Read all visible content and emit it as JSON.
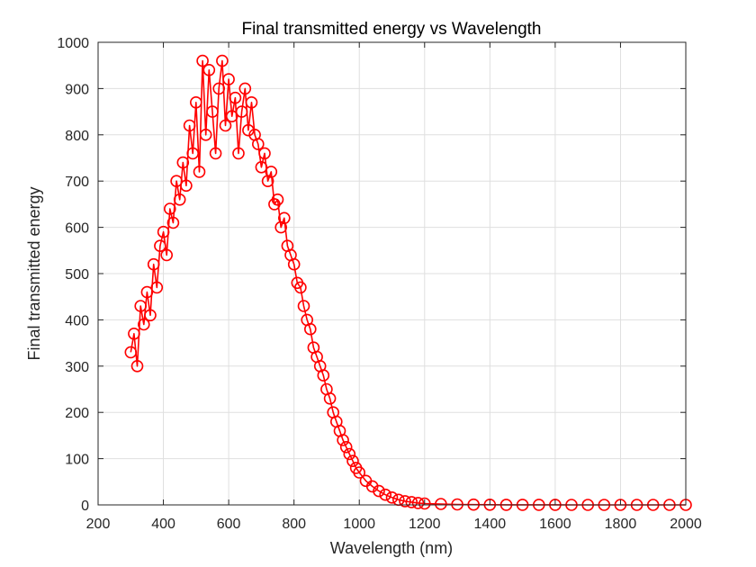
{
  "chart_data": {
    "type": "scatter",
    "title": "Final transmitted energy vs Wavelength",
    "xlabel": "Wavelength (nm)",
    "ylabel": "Final transmitted energy",
    "xlim": [
      200,
      2000
    ],
    "ylim": [
      0,
      1000
    ],
    "xticks": [
      "200",
      "400",
      "600",
      "800",
      "1000",
      "1200",
      "1400",
      "1600",
      "1800",
      "2000"
    ],
    "yticks": [
      "0",
      "100",
      "200",
      "300",
      "400",
      "500",
      "600",
      "700",
      "800",
      "900",
      "1000"
    ],
    "grid": true,
    "marker": "circle",
    "connected": true,
    "series_color": "#ff0000",
    "x": [
      300,
      310,
      320,
      330,
      340,
      350,
      360,
      370,
      380,
      390,
      400,
      410,
      420,
      430,
      440,
      450,
      460,
      470,
      480,
      490,
      500,
      510,
      520,
      530,
      540,
      550,
      560,
      570,
      580,
      590,
      600,
      610,
      620,
      630,
      640,
      650,
      660,
      670,
      680,
      690,
      700,
      710,
      720,
      730,
      740,
      750,
      760,
      770,
      780,
      790,
      800,
      810,
      820,
      830,
      840,
      850,
      860,
      870,
      880,
      890,
      900,
      910,
      920,
      930,
      940,
      950,
      960,
      970,
      980,
      990,
      1000,
      1020,
      1040,
      1060,
      1080,
      1100,
      1120,
      1140,
      1160,
      1180,
      1200,
      1250,
      1300,
      1350,
      1400,
      1450,
      1500,
      1550,
      1600,
      1650,
      1700,
      1750,
      1800,
      1850,
      1900,
      1950,
      2000
    ],
    "y": [
      330,
      370,
      300,
      430,
      390,
      460,
      410,
      520,
      470,
      560,
      590,
      540,
      640,
      610,
      700,
      660,
      740,
      690,
      820,
      760,
      870,
      720,
      960,
      800,
      940,
      850,
      760,
      900,
      960,
      820,
      920,
      840,
      880,
      760,
      850,
      900,
      810,
      870,
      800,
      780,
      730,
      760,
      700,
      720,
      650,
      660,
      600,
      620,
      560,
      540,
      520,
      480,
      470,
      430,
      400,
      380,
      340,
      320,
      300,
      280,
      250,
      230,
      200,
      180,
      160,
      140,
      125,
      110,
      95,
      80,
      70,
      52,
      40,
      30,
      22,
      16,
      11,
      8,
      6,
      4,
      3,
      2,
      1,
      0.5,
      0.3,
      0.2,
      0.1,
      0.1,
      0.1,
      0,
      0,
      0,
      0,
      0,
      0,
      0,
      0
    ]
  }
}
